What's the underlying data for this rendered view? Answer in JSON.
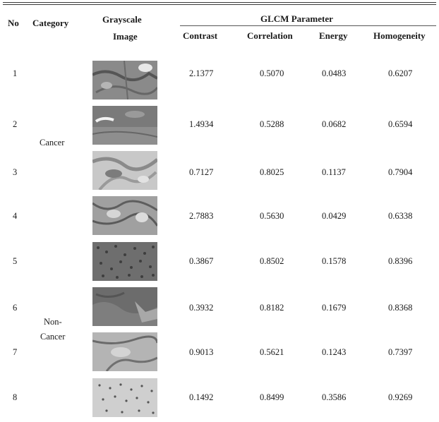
{
  "header": {
    "no": "No",
    "category": "Category",
    "image_line1": "Grayscale",
    "image_line2": "Image",
    "group": "GLCM Parameter",
    "contrast": "Contrast",
    "correlation": "Correlation",
    "energy": "Energy",
    "homogeneity": "Homogeneity"
  },
  "categories": {
    "cancer": "Cancer",
    "noncancer_line1": "Non-",
    "noncancer_line2": "Cancer"
  },
  "rows": [
    {
      "no": "1",
      "contrast": "2.1377",
      "correlation": "0.5070",
      "energy": "0.0483",
      "homogeneity": "0.6207"
    },
    {
      "no": "2",
      "contrast": "1.4934",
      "correlation": "0.5288",
      "energy": "0.0682",
      "homogeneity": "0.6594"
    },
    {
      "no": "3",
      "contrast": "0.7127",
      "correlation": "0.8025",
      "energy": "0.1137",
      "homogeneity": "0.7904"
    },
    {
      "no": "4",
      "contrast": "2.7883",
      "correlation": "0.5630",
      "energy": "0.0429",
      "homogeneity": "0.6338"
    },
    {
      "no": "5",
      "contrast": "0.3867",
      "correlation": "0.8502",
      "energy": "0.1578",
      "homogeneity": "0.8396"
    },
    {
      "no": "6",
      "contrast": "0.3932",
      "correlation": "0.8182",
      "energy": "0.1679",
      "homogeneity": "0.8368"
    },
    {
      "no": "7",
      "contrast": "0.9013",
      "correlation": "0.5621",
      "energy": "0.1243",
      "homogeneity": "0.7397"
    },
    {
      "no": "8",
      "contrast": "0.1492",
      "correlation": "0.8499",
      "energy": "0.3586",
      "homogeneity": "0.9269"
    }
  ]
}
